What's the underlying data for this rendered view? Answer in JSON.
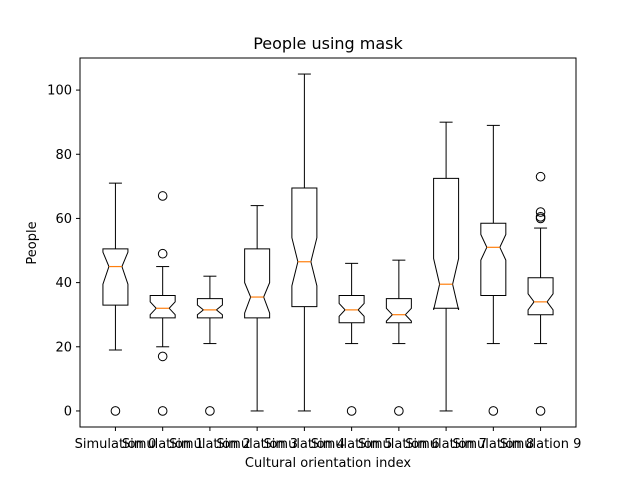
{
  "chart_data": {
    "type": "boxplot",
    "notched": true,
    "title": "People using mask",
    "xlabel": "Cultural orientation index",
    "ylabel": "People",
    "ylim": [
      -5,
      110
    ],
    "yticks": [
      0,
      20,
      40,
      60,
      80,
      100
    ],
    "colors": {
      "median": "#ff7f0e",
      "box": "#000000",
      "outlier": "#000000"
    },
    "categories": [
      "Simulation 0",
      "Simulation 1",
      "Simulation 2",
      "Simulation 3",
      "Simulation 4",
      "Simulation 5",
      "Simulation 6",
      "Simulation 7",
      "Simulation 8",
      "Simulation 9"
    ],
    "boxes": [
      {
        "whislo": 19,
        "q1": 33,
        "notchlo": 39.5,
        "med": 45,
        "notchhi": 49.5,
        "q3": 50.5,
        "whishi": 71,
        "fliers": [
          0
        ]
      },
      {
        "whislo": 20,
        "q1": 29,
        "notchlo": 30,
        "med": 32,
        "notchhi": 34,
        "q3": 36,
        "whishi": 45,
        "fliers": [
          0,
          17,
          49,
          67
        ]
      },
      {
        "whislo": 21,
        "q1": 29,
        "notchlo": 30,
        "med": 31.5,
        "notchhi": 33,
        "q3": 35,
        "whishi": 42,
        "fliers": [
          0
        ]
      },
      {
        "whislo": 0,
        "q1": 29,
        "notchlo": 30.5,
        "med": 35.5,
        "notchhi": 40,
        "q3": 50.5,
        "whishi": 64,
        "fliers": []
      },
      {
        "whislo": 0,
        "q1": 32.5,
        "notchlo": 39,
        "med": 46.5,
        "notchhi": 54,
        "q3": 69.5,
        "whishi": 105,
        "fliers": []
      },
      {
        "whislo": 21,
        "q1": 27.5,
        "notchlo": 29.5,
        "med": 31.5,
        "notchhi": 33.5,
        "q3": 36,
        "whishi": 46,
        "fliers": [
          0
        ]
      },
      {
        "whislo": 21,
        "q1": 27.5,
        "notchlo": 28,
        "med": 30,
        "notchhi": 32,
        "q3": 35,
        "whishi": 47,
        "fliers": [
          0
        ]
      },
      {
        "whislo": 0,
        "q1": 32,
        "notchlo": 31.5,
        "med": 39.5,
        "notchhi": 47.5,
        "q3": 72.5,
        "whishi": 90,
        "fliers": []
      },
      {
        "whislo": 21,
        "q1": 36,
        "notchlo": 47,
        "med": 51,
        "notchhi": 55,
        "q3": 58.5,
        "whishi": 89,
        "fliers": [
          0
        ]
      },
      {
        "whislo": 21,
        "q1": 30,
        "notchlo": 31.5,
        "med": 34,
        "notchhi": 36.5,
        "q3": 41.5,
        "whishi": 57,
        "fliers": [
          0,
          60,
          60.5,
          62,
          73
        ]
      }
    ]
  }
}
